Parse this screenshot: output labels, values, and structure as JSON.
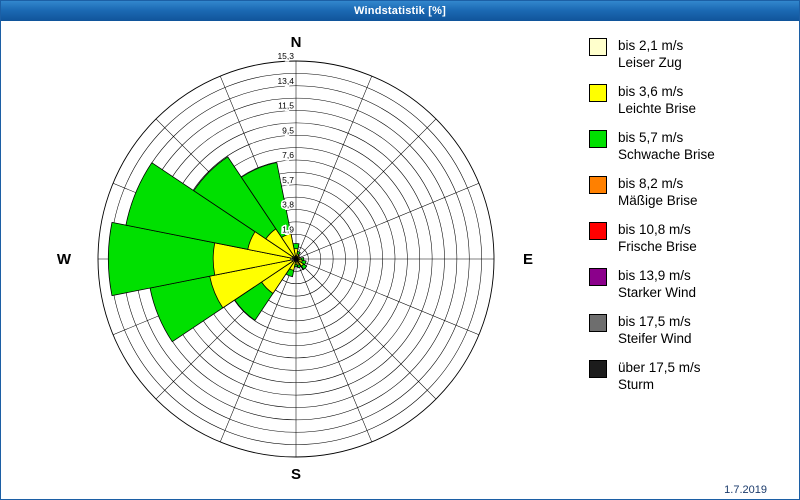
{
  "window": {
    "title": "Windstatistik [%]"
  },
  "footer": {
    "date": "1.7.2019"
  },
  "legend": {
    "items": [
      {
        "speed": "bis 2,1 m/s",
        "name": "Leiser Zug",
        "color": "#ffffcc"
      },
      {
        "speed": "bis 3,6 m/s",
        "name": "Leichte Brise",
        "color": "#ffff00"
      },
      {
        "speed": "bis 5,7 m/s",
        "name": "Schwache Brise",
        "color": "#00e000"
      },
      {
        "speed": "bis 8,2 m/s",
        "name": "Mäßige Brise",
        "color": "#ff8000"
      },
      {
        "speed": "bis 10,8 m/s",
        "name": "Frische Brise",
        "color": "#ff0000"
      },
      {
        "speed": "bis 13,9 m/s",
        "name": "Starker Wind",
        "color": "#8b008b"
      },
      {
        "speed": "bis 17,5 m/s",
        "name": "Steifer Wind",
        "color": "#6e6e6e"
      },
      {
        "speed": "über 17,5 m/s",
        "name": "Sturm",
        "color": "#1c1c1c"
      }
    ]
  },
  "chart_data": {
    "type": "wind-rose",
    "title": "Windstatistik [%]",
    "units": "%",
    "max_value": 15.3,
    "grid": {
      "rings": 16,
      "spokes": 16
    },
    "ring_labels": [
      "1,9",
      "3,8",
      "5,7",
      "7,6",
      "9,5",
      "11,5",
      "13,4",
      "15,3"
    ],
    "cardinal_labels": [
      "N",
      "E",
      "S",
      "W"
    ],
    "directions": [
      "N",
      "NNE",
      "NE",
      "ENE",
      "E",
      "ESE",
      "SE",
      "SSE",
      "S",
      "SSW",
      "SW",
      "WSW",
      "W",
      "WNW",
      "NW",
      "NNW"
    ],
    "series": [
      {
        "key": "leiser-zug",
        "name": "bis 2,1 m/s Leiser Zug",
        "color": "#ffffcc",
        "values": [
          0.2,
          0.1,
          0.1,
          0.1,
          0.1,
          0.1,
          0.2,
          0.1,
          0.1,
          0.1,
          0.2,
          0.3,
          0.4,
          0.3,
          0.3,
          0.2
        ]
      },
      {
        "key": "leichte-brise",
        "name": "bis 3,6 m/s Leichte Brise",
        "color": "#ffff00",
        "values": [
          0.6,
          0.3,
          0.2,
          0.2,
          0.3,
          0.4,
          0.5,
          0.4,
          0.3,
          0.8,
          3.0,
          6.5,
          6.0,
          3.5,
          2.5,
          1.8
        ]
      },
      {
        "key": "schwache-brise",
        "name": "bis 5,7 m/s Schwache Brise",
        "color": "#00e000",
        "values": [
          0.4,
          0.2,
          0.0,
          0.0,
          0.2,
          0.3,
          0.3,
          0.2,
          0.2,
          0.5,
          2.5,
          4.7,
          8.1,
          9.6,
          6.7,
          5.6
        ]
      }
    ],
    "calm_marker_angle_deg": 145
  }
}
